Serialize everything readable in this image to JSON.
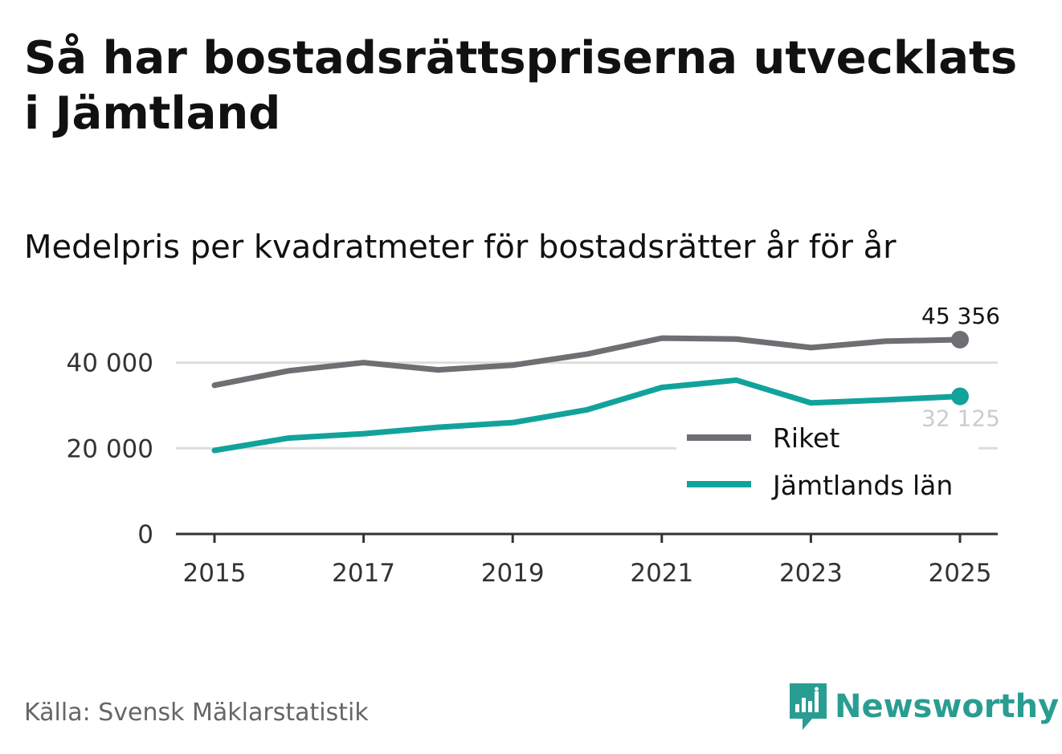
{
  "header": {
    "title": "Så har bostadsrättspriserna utvecklats i Jämtland",
    "subtitle": "Medelpris per kvadratmeter för bostadsrätter år för år"
  },
  "footer": {
    "source": "Källa: Svensk Mäklarstatistik",
    "brand": "Newsworthy"
  },
  "colors": {
    "riket": "#6e6e73",
    "jamtland": "#11a39b",
    "grid": "#dddddd",
    "axis": "#333333",
    "brand": "#2a9d92"
  },
  "chart_data": {
    "type": "line",
    "title": "Så har bostadsrättspriserna utvecklats i Jämtland",
    "subtitle": "Medelpris per kvadratmeter för bostadsrätter år för år",
    "xlabel": "",
    "ylabel": "",
    "x": [
      2015,
      2016,
      2017,
      2018,
      2019,
      2020,
      2021,
      2022,
      2023,
      2024,
      2025
    ],
    "xticks": [
      "2015",
      "2017",
      "2019",
      "2021",
      "2023",
      "2025"
    ],
    "yticks": [
      0,
      20000,
      40000
    ],
    "ytick_labels": [
      "0",
      "20 000",
      "40 000"
    ],
    "xlim": [
      2015,
      2025
    ],
    "ylim": [
      0,
      45356
    ],
    "grid": "horizontal",
    "legend_position": "right",
    "series": [
      {
        "name": "Riket",
        "key": "riket",
        "values": [
          34700,
          38100,
          40000,
          38300,
          39400,
          42000,
          45700,
          45500,
          43500,
          45000,
          45356
        ],
        "end_label": "45 356"
      },
      {
        "name": "Jämtlands län",
        "key": "jamtland",
        "values": [
          19500,
          22400,
          23400,
          24900,
          26000,
          29000,
          34200,
          35900,
          30600,
          31300,
          32125
        ],
        "end_label": "32 125"
      }
    ]
  }
}
